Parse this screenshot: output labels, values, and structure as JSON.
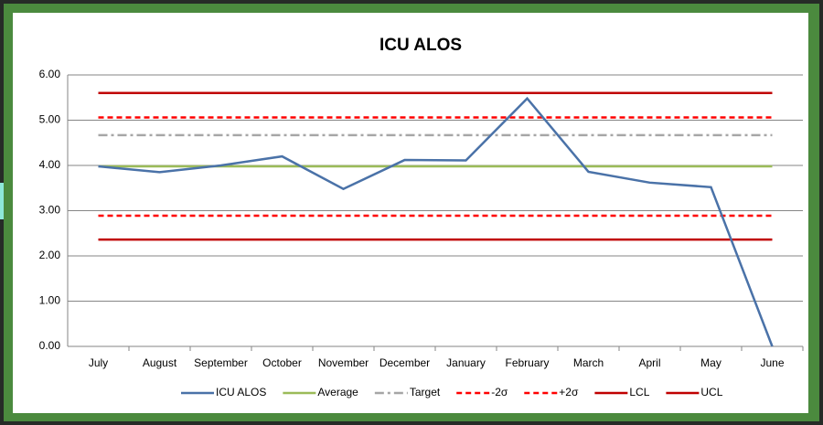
{
  "chart_data": {
    "type": "line",
    "title": "ICU ALOS",
    "categories": [
      "July",
      "August",
      "September",
      "October",
      "November",
      "December",
      "January",
      "February",
      "March",
      "April",
      "May",
      "June"
    ],
    "series": [
      {
        "name": "ICU ALOS",
        "color": "#4a72a8",
        "width": 2.5,
        "dash": "solid",
        "values": [
          3.98,
          3.85,
          4.0,
          4.2,
          3.48,
          4.12,
          4.11,
          5.48,
          3.86,
          3.62,
          3.52,
          0
        ]
      },
      {
        "name": "Average",
        "color": "#9bbb59",
        "width": 2.5,
        "dash": "solid",
        "values": [
          3.98,
          3.98,
          3.98,
          3.98,
          3.98,
          3.98,
          3.98,
          3.98,
          3.98,
          3.98,
          3.98,
          3.98
        ]
      },
      {
        "name": "Target",
        "color": "#a6a6a6",
        "width": 2.5,
        "dash": "dashdot",
        "values": [
          4.67,
          4.67,
          4.67,
          4.67,
          4.67,
          4.67,
          4.67,
          4.67,
          4.67,
          4.67,
          4.67,
          4.67
        ]
      },
      {
        "name": "-2σ",
        "color": "#ff0000",
        "width": 2.5,
        "dash": "dash",
        "values": [
          2.89,
          2.89,
          2.89,
          2.89,
          2.89,
          2.89,
          2.89,
          2.89,
          2.89,
          2.89,
          2.89,
          2.89
        ]
      },
      {
        "name": "+2σ",
        "color": "#ff0000",
        "width": 2.5,
        "dash": "dash",
        "values": [
          5.06,
          5.06,
          5.06,
          5.06,
          5.06,
          5.06,
          5.06,
          5.06,
          5.06,
          5.06,
          5.06,
          5.06
        ]
      },
      {
        "name": "LCL",
        "color": "#c00000",
        "width": 2.5,
        "dash": "solid",
        "values": [
          2.36,
          2.36,
          2.36,
          2.36,
          2.36,
          2.36,
          2.36,
          2.36,
          2.36,
          2.36,
          2.36,
          2.36
        ]
      },
      {
        "name": "UCL",
        "color": "#c00000",
        "width": 2.5,
        "dash": "solid",
        "values": [
          5.6,
          5.6,
          5.6,
          5.6,
          5.6,
          5.6,
          5.6,
          5.6,
          5.6,
          5.6,
          5.6,
          5.6
        ]
      }
    ],
    "ylim": [
      0,
      6
    ],
    "yticks": [
      {
        "value": 0,
        "label": "0.00"
      },
      {
        "value": 1,
        "label": "1.00"
      },
      {
        "value": 2,
        "label": "2.00"
      },
      {
        "value": 3,
        "label": "3.00"
      },
      {
        "value": 4,
        "label": "4.00"
      },
      {
        "value": 5,
        "label": "5.00"
      },
      {
        "value": 6,
        "label": "6.00"
      }
    ],
    "grid": true,
    "legend": "bottom"
  }
}
